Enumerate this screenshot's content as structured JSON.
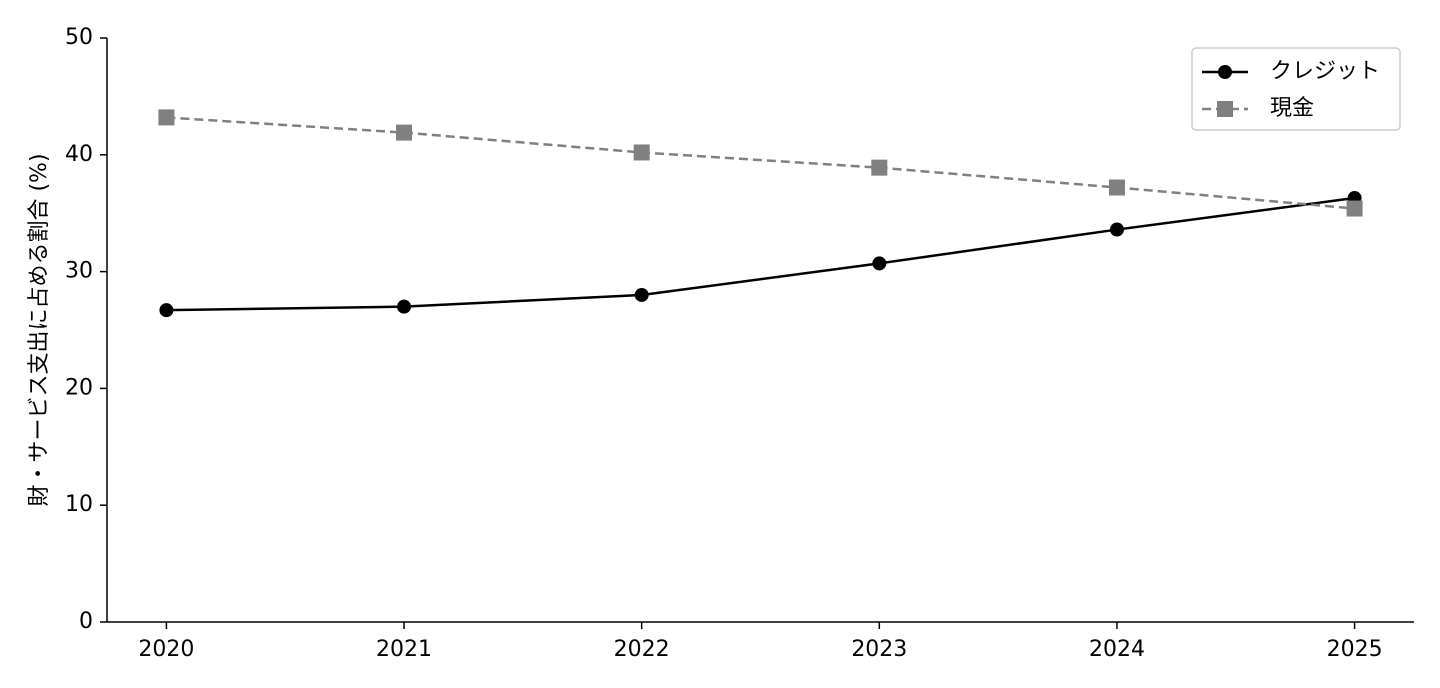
{
  "chart_data": {
    "type": "line",
    "y_label": "財・サービス支出に占める割合 (%)",
    "x": [
      2020,
      2021,
      2022,
      2023,
      2024,
      2025
    ],
    "xlim": [
      2019.75,
      2025.25
    ],
    "xticks": [
      2020,
      2021,
      2022,
      2023,
      2024,
      2025
    ],
    "ylim": [
      0,
      50
    ],
    "yticks": [
      0,
      10,
      20,
      30,
      40,
      50
    ],
    "legend": "upper right",
    "series": [
      {
        "name": "クレジット",
        "color": "#000000",
        "marker": "circle",
        "dash": "solid",
        "values": [
          26.7,
          27.0,
          28.0,
          30.7,
          33.6,
          36.3
        ]
      },
      {
        "name": "現金",
        "color": "#808080",
        "marker": "square",
        "dash": "dashed",
        "values": [
          43.2,
          41.9,
          40.2,
          38.9,
          37.2,
          35.4
        ]
      }
    ]
  }
}
